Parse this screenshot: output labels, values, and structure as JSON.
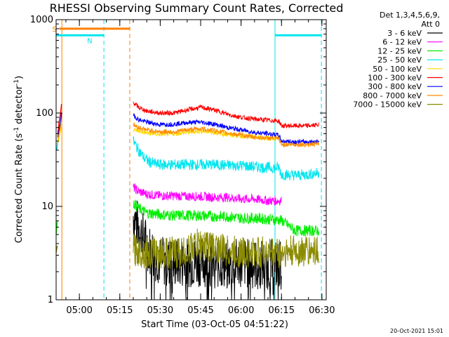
{
  "chart_data": {
    "type": "line",
    "title": "RHESSI Observing Summary Count Rates, Corrected",
    "xlabel": "Start Time (03-Oct-05 04:51:22)",
    "ylabel": "Corrected Count Rate (s",
    "ylabel_sup1": "-1",
    "ylabel_mid": " detector",
    "ylabel_sup2": "-1",
    "ylabel_end": ")",
    "yscale": "log",
    "ylim": [
      1,
      1000
    ],
    "yticks": [
      {
        "value": 1,
        "label": "1"
      },
      {
        "value": 10,
        "label": "10"
      },
      {
        "value": 100,
        "label": "100"
      },
      {
        "value": 1000,
        "label": "1000"
      }
    ],
    "xlim_minutes": [
      291.37,
      391.6
    ],
    "xticks": [
      {
        "minutes": 300,
        "label": "05:00"
      },
      {
        "minutes": 315,
        "label": "05:15"
      },
      {
        "minutes": 330,
        "label": "05:30"
      },
      {
        "minutes": 345,
        "label": "05:45"
      },
      {
        "minutes": 360,
        "label": "06:00"
      },
      {
        "minutes": 375,
        "label": "06:15"
      },
      {
        "minutes": 390,
        "label": "06:30"
      }
    ],
    "legend_header": [
      "Det 1,3,4,5,6,9,",
      "Att 0"
    ],
    "legend_position": "right",
    "timestamp": "20-Oct-2021 15:01",
    "flags": {
      "saa": {
        "label": "S",
        "start": 292.5,
        "end": 318.7,
        "value": 800,
        "color": "#ff7f00"
      },
      "night": [
        {
          "label": "N",
          "start": 291.4,
          "end": 309.1,
          "value": 680,
          "color": "#00e5ee"
        },
        {
          "label": "",
          "start": 372.6,
          "end": 389.8,
          "value": 680,
          "color": "#00e5ee"
        }
      ]
    },
    "vlines": [
      {
        "minutes": 293.5,
        "color": "#ff7f00",
        "dashed": false
      },
      {
        "minutes": 309.1,
        "color": "#00e5ee",
        "dashed": true
      },
      {
        "minutes": 318.7,
        "color": "#ff7f00",
        "dashed": true
      },
      {
        "minutes": 372.6,
        "color": "#00e5ee",
        "dashed": false
      },
      {
        "minutes": 389.8,
        "color": "#00e5ee",
        "dashed": true
      }
    ],
    "series": [
      {
        "name": "3 - 6 keV",
        "color": "#000000",
        "x": [
          320,
          322,
          324,
          326,
          328,
          330,
          335,
          340,
          345,
          350,
          355,
          360,
          365,
          370,
          375
        ],
        "y": [
          8,
          6,
          4.5,
          3.5,
          3,
          2.6,
          2.5,
          2.5,
          2.6,
          2.5,
          2.4,
          2.5,
          2.4,
          2.4,
          2.4
        ]
      },
      {
        "name": "6 - 12 keV",
        "color": "#ff00ff",
        "x": [
          320,
          322,
          325,
          330,
          335,
          340,
          345,
          350,
          355,
          360,
          365,
          370,
          375
        ],
        "y": [
          16,
          14.5,
          13.5,
          13,
          13,
          12.8,
          12.8,
          12.5,
          12.5,
          12,
          12,
          11.5,
          11.5
        ]
      },
      {
        "name": "12 - 25 keV",
        "color": "#00ee00",
        "x": [
          320,
          322,
          325,
          330,
          335,
          340,
          345,
          350,
          355,
          360,
          365,
          370,
          375,
          380,
          385,
          389
        ],
        "y": [
          11,
          9.5,
          8.5,
          8.2,
          8,
          8,
          8,
          7.8,
          7.8,
          7.5,
          7.5,
          7.3,
          7.1,
          5.5,
          5.5,
          5.5
        ]
      },
      {
        "name": "25 - 50 keV",
        "color": "#00e5ee",
        "x": [
          320,
          322,
          324,
          326,
          328,
          330,
          335,
          340,
          345,
          350,
          355,
          360,
          365,
          370,
          374,
          375,
          380,
          385,
          389
        ],
        "y": [
          50,
          40,
          33,
          30,
          28.5,
          28,
          28,
          28,
          28,
          28,
          27.5,
          27.5,
          26.5,
          26,
          26,
          22,
          21.5,
          22,
          23
        ]
      },
      {
        "name": "50 - 100 keV",
        "color": "#ffd700",
        "x": [
          320,
          322,
          325,
          330,
          335,
          340,
          345,
          350,
          355,
          360,
          365,
          370,
          374
        ],
        "y": [
          67,
          64,
          61,
          59,
          60,
          62,
          64,
          62,
          59,
          57,
          55,
          54,
          53
        ]
      },
      {
        "name": "100 - 300 keV",
        "color": "#ff0000",
        "x": [
          320,
          322,
          325,
          330,
          335,
          340,
          345,
          350,
          355,
          360,
          365,
          370,
          374,
          375,
          380,
          385,
          389
        ],
        "y": [
          130,
          115,
          105,
          100,
          100,
          108,
          115,
          108,
          97,
          90,
          86,
          84,
          82,
          73,
          73,
          73,
          75
        ]
      },
      {
        "name": "300 - 800 keV",
        "color": "#0000ff",
        "x": [
          320,
          322,
          325,
          330,
          335,
          340,
          345,
          350,
          355,
          360,
          365,
          370,
          374,
          375,
          380,
          385,
          389
        ],
        "y": [
          95,
          85,
          80,
          75,
          76,
          79,
          80,
          76,
          70,
          66,
          62,
          60,
          58,
          50,
          49,
          49,
          50
        ]
      },
      {
        "name": "800 - 7000 keV",
        "color": "#ff8c00",
        "x": [
          320,
          322,
          325,
          330,
          335,
          340,
          345,
          350,
          355,
          360,
          365,
          370,
          374,
          375,
          380,
          385,
          389
        ],
        "y": [
          75,
          70,
          66,
          63,
          63,
          66,
          68,
          65,
          61,
          58,
          55,
          54,
          53,
          46,
          46,
          46,
          47
        ]
      },
      {
        "name": "7000 - 15000 keV",
        "color": "#8b8b00",
        "x": [
          320,
          322,
          325,
          330,
          335,
          340,
          342,
          345,
          350,
          355,
          360,
          365,
          370,
          375,
          380,
          385,
          389
        ],
        "y": [
          3.5,
          3.3,
          3.2,
          3.2,
          3.2,
          3.2,
          3.8,
          3.9,
          3.7,
          3.3,
          3.2,
          3.2,
          3.2,
          3.2,
          3.3,
          3.3,
          3.5
        ]
      }
    ],
    "early_segments": [
      {
        "color": "#00ee00",
        "x": [
          291.37,
          291.6,
          291.8
        ],
        "y": [
          5,
          6,
          7
        ]
      },
      {
        "color": "#8b8b00",
        "x": [
          291.37,
          291.6,
          291.8
        ],
        "y": [
          3.2,
          3.5,
          3.8
        ]
      },
      {
        "color": "#00e5ee",
        "x": [
          291.6,
          292.0,
          292.5,
          293.0
        ],
        "y": [
          40,
          50,
          60,
          70
        ]
      },
      {
        "color": "#ff0000",
        "x": [
          292.0,
          292.5,
          293.0,
          293.4
        ],
        "y": [
          60,
          80,
          100,
          125
        ]
      },
      {
        "color": "#0000ff",
        "x": [
          292.0,
          292.5,
          293.0,
          293.4
        ],
        "y": [
          55,
          65,
          80,
          100
        ]
      },
      {
        "color": "#ff8c00",
        "x": [
          292.0,
          292.5,
          293.0,
          293.4
        ],
        "y": [
          50,
          60,
          70,
          85
        ]
      },
      {
        "color": "#ffd700",
        "x": [
          292.0,
          292.5,
          293.0,
          293.4
        ],
        "y": [
          48,
          55,
          65,
          80
        ]
      }
    ]
  }
}
